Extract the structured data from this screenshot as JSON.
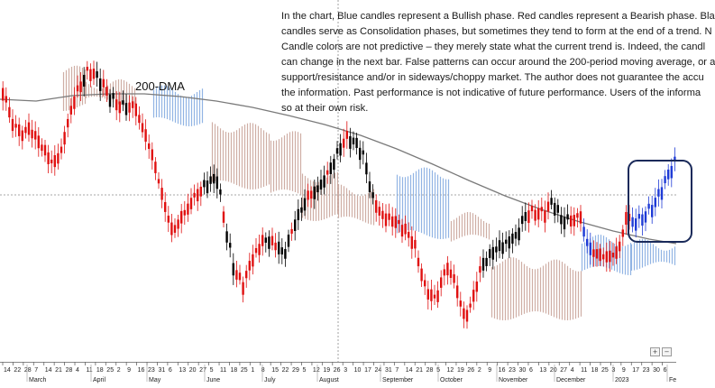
{
  "disclaimer": {
    "lines": [
      "In the chart, Blue candles represent a Bullish phase. Red candles represent a Bearish phase. Bla",
      "candles serve as Consolidation phases, but sometimes they tend to form at the end of a trend. N",
      "Candle colors are not predictive – they merely state what the current trend is. Indeed, the candl",
      "can change in the next bar. False patterns can occur around the 200-period moving average, or a",
      "support/resistance and/or in sideways/choppy market. The author does not guarantee the accu",
      "the information. Past performance is not indicative of future performance. Users of the informa",
      "so at their own risk."
    ]
  },
  "dma_label": "200-DMA",
  "colors": {
    "bullish": "#1f3bd6",
    "bearish": "#e01010",
    "consolidation": "#000000",
    "dma_line": "#7a7a7a",
    "cloud_bull": "#7fa8e0",
    "cloud_bear": "#c7a096",
    "highlight_box": "#1a2a5a",
    "reference_line": "#8a8a8a"
  },
  "scroll_buttons": [
    "zoom-in-icon",
    "zoom-out-icon"
  ],
  "axis": {
    "day_ticks": [
      "14",
      "22",
      "28",
      "7",
      "14",
      "21",
      "28",
      "4",
      "11",
      "18",
      "25",
      "2",
      "9",
      "16",
      "23",
      "31",
      "6",
      "13",
      "20",
      "27",
      "5",
      "11",
      "18",
      "25",
      "1",
      "8",
      "15",
      "22",
      "29",
      "5",
      "12",
      "19",
      "26",
      "3",
      "10",
      "17",
      "24",
      "31",
      "7",
      "14",
      "21",
      "28",
      "5",
      "12",
      "19",
      "26",
      "2",
      "9",
      "16",
      "23",
      "30",
      "6",
      "13",
      "20",
      "27",
      "4",
      "11",
      "18",
      "25",
      "3",
      "9",
      "17",
      "23",
      "30",
      "6"
    ],
    "months": [
      "March",
      "April",
      "May",
      "June",
      "July",
      "August",
      "September",
      "October",
      "November",
      "December",
      "2023",
      "Fe"
    ]
  },
  "chart_data": {
    "type": "candlestick",
    "description_series": [
      "Bullish (blue)",
      "Bearish (red)",
      "Consolidation (black)"
    ],
    "overlays": [
      "200-DMA",
      "Ichimoku cloud"
    ],
    "grid": false,
    "y_axis_shown": false,
    "x_axis_unit": "date",
    "x_range": [
      "2022-03-07",
      "2023-02-06"
    ]
  }
}
